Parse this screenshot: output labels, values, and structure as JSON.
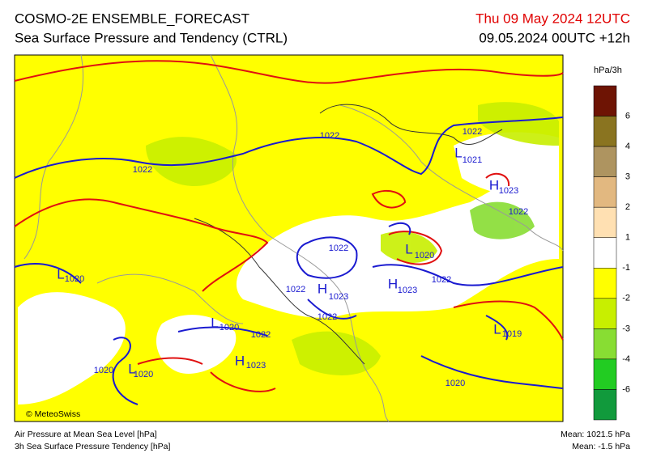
{
  "header": {
    "title": "COSMO-2E ENSEMBLE_FORECAST",
    "subtitle": "Sea Surface Pressure and Tendency (CTRL)",
    "valid_time": "Thu 09 May 2024 12UTC",
    "run_time": "09.05.2024 00UTC +12h"
  },
  "legend": {
    "unit": "hPa/3h",
    "colors": [
      "#6e1404",
      "#8a7420",
      "#ae9460",
      "#e2b880",
      "#ffe0b2",
      "#ffffff",
      "#ffff00",
      "#c8ef00",
      "#88dd33",
      "#22cc22",
      "#119a3c"
    ],
    "labels": [
      "6",
      "4",
      "3",
      "2",
      "1",
      "-1",
      "-2",
      "-3",
      "-4",
      "-6"
    ]
  },
  "map_labels": [
    "1022",
    "1022",
    "1022",
    "L",
    "1021",
    "H",
    "1023",
    "1022",
    "1022",
    "L",
    "1020",
    "L",
    "1020",
    "1022",
    "H",
    "1023",
    "H",
    "1023",
    "1022",
    "1022",
    "L",
    "1020",
    "1022",
    "L",
    "1019",
    "H",
    "1023",
    "1020",
    "L",
    "1020",
    "1020"
  ],
  "footer": {
    "credit": "© MeteoSwiss",
    "line1": "Air Pressure at Mean Sea Level [hPa]",
    "line2": "3h Sea Surface Pressure Tendency [hPa]",
    "mean1": "Mean: 1021.5 hPa",
    "mean2": "Mean:  -1.5 hPa"
  }
}
